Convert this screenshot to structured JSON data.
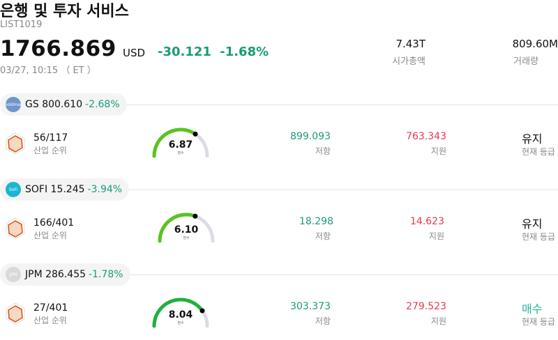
{
  "header": {
    "title": "은행 및 투자 서비스",
    "code": "LIST1019",
    "price": "1766.869",
    "currency": "USD",
    "change": "-30.121",
    "change_pct": "-1.68%",
    "time": "03/27, 10:15 （ ET ）",
    "market_cap": {
      "value": "7.43T",
      "label": "시가총액"
    },
    "volume": {
      "value": "809.60M",
      "label": "거래량"
    }
  },
  "stocks": [
    {
      "ticker": "GS",
      "price": "800.610",
      "change_pct": "-2.68%",
      "logo_color": "#6f95c9",
      "logo_text": "Goldman",
      "rank": "56/117",
      "rank_label": "산업 순위",
      "score": "6.87",
      "score_label": "점수",
      "score_fraction": 0.687,
      "gauge_color": "#58c41f",
      "resistance": "899.093",
      "resistance_label": "저항",
      "support": "763.343",
      "support_label": "지원",
      "rating": "유지",
      "rating_label": "현재 등급",
      "rating_color": "#111111"
    },
    {
      "ticker": "SOFI",
      "price": "15.245",
      "change_pct": "-3.94%",
      "logo_color": "#19b6d3",
      "logo_text": "SoFi",
      "rank": "166/401",
      "rank_label": "산업 순위",
      "score": "6.10",
      "score_label": "점수",
      "score_fraction": 0.61,
      "gauge_color": "#58c41f",
      "resistance": "18.298",
      "resistance_label": "저항",
      "support": "14.623",
      "support_label": "지원",
      "rating": "유지",
      "rating_label": "현재 등급",
      "rating_color": "#111111"
    },
    {
      "ticker": "JPM",
      "price": "286.455",
      "change_pct": "-1.78%",
      "logo_color": "#d9d9d9",
      "logo_text": "JPM",
      "rank": "27/401",
      "rank_label": "산업 순위",
      "score": "8.04",
      "score_label": "점수",
      "score_fraction": 0.804,
      "gauge_color": "#22b03d",
      "resistance": "303.373",
      "resistance_label": "저항",
      "support": "279.523",
      "support_label": "지원",
      "rating": "매수",
      "rating_label": "현재 등급",
      "rating_color": "#26b39a"
    }
  ],
  "colors": {
    "up": "#1a9b7b",
    "down": "#e8384f",
    "muted": "#888888"
  }
}
